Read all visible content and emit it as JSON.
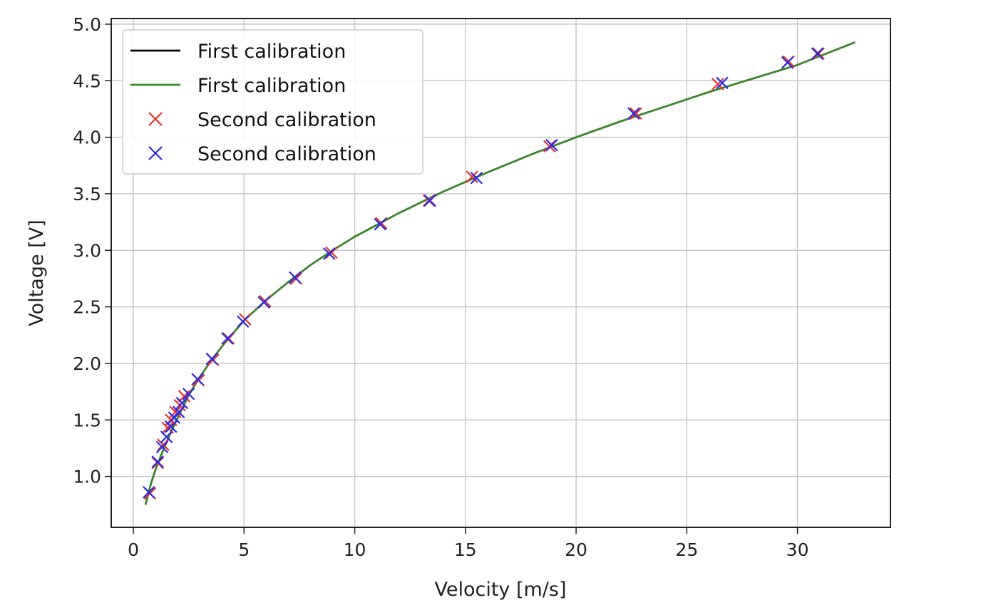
{
  "chart_data": {
    "type": "line",
    "title": "",
    "xlabel": "Velocity [m/s]",
    "ylabel": "Voltage [V]",
    "xlim": [
      -1.0,
      34.2
    ],
    "ylim": [
      0.55,
      5.05
    ],
    "xticks": [
      0,
      5,
      10,
      15,
      20,
      25,
      30
    ],
    "xtick_labels": [
      "0",
      "5",
      "10",
      "15",
      "20",
      "25",
      "30"
    ],
    "yticks": [
      1.0,
      1.5,
      2.0,
      2.5,
      3.0,
      3.5,
      4.0,
      4.5,
      5.0
    ],
    "ytick_labels": [
      "1.0",
      "1.5",
      "2.0",
      "2.5",
      "3.0",
      "3.5",
      "4.0",
      "4.5",
      "5.0"
    ],
    "grid": true,
    "legend_position": "top-left",
    "series": [
      {
        "name": "First calibration",
        "kind": "line",
        "color": "#000000",
        "x": [
          0.55,
          0.8,
          1.0,
          1.3,
          1.6,
          2.0,
          2.5,
          3.0,
          3.5,
          4.0,
          5.0,
          6.0,
          7.0,
          8.0,
          9.0,
          10.0,
          12.0,
          14.0,
          16.0,
          18.0,
          20.0,
          22.0,
          24.0,
          26.0,
          28.0,
          30.0,
          32.6
        ],
        "y": [
          0.75,
          0.94,
          1.06,
          1.21,
          1.35,
          1.52,
          1.72,
          1.88,
          2.02,
          2.15,
          2.38,
          2.56,
          2.72,
          2.87,
          3.0,
          3.12,
          3.33,
          3.52,
          3.69,
          3.85,
          4.0,
          4.14,
          4.27,
          4.4,
          4.52,
          4.64,
          4.84
        ]
      },
      {
        "name": "First calibration",
        "kind": "line",
        "color": "#3a8a2a",
        "x": [
          0.55,
          0.8,
          1.0,
          1.3,
          1.6,
          2.0,
          2.5,
          3.0,
          3.5,
          4.0,
          5.0,
          6.0,
          7.0,
          8.0,
          9.0,
          10.0,
          12.0,
          14.0,
          16.0,
          18.0,
          20.0,
          22.0,
          24.0,
          26.0,
          28.0,
          30.0,
          32.6
        ],
        "y": [
          0.75,
          0.94,
          1.06,
          1.21,
          1.35,
          1.52,
          1.72,
          1.88,
          2.02,
          2.15,
          2.38,
          2.56,
          2.72,
          2.87,
          3.0,
          3.12,
          3.33,
          3.52,
          3.69,
          3.85,
          4.0,
          4.14,
          4.27,
          4.4,
          4.52,
          4.64,
          4.84
        ]
      },
      {
        "name": "Second calibration",
        "kind": "scatter",
        "marker": "x",
        "color": "#e8332a",
        "x": [
          0.75,
          1.1,
          1.35,
          1.55,
          1.7,
          1.9,
          2.1,
          2.3,
          2.95,
          3.6,
          4.3,
          5.05,
          5.95,
          7.35,
          8.95,
          11.2,
          13.35,
          15.3,
          18.8,
          22.7,
          26.4,
          29.6,
          30.95
        ],
        "y": [
          0.85,
          1.12,
          1.28,
          1.43,
          1.5,
          1.57,
          1.63,
          1.71,
          1.85,
          2.03,
          2.22,
          2.39,
          2.55,
          2.75,
          2.98,
          3.24,
          3.44,
          3.65,
          3.92,
          4.21,
          4.47,
          4.67,
          4.74
        ]
      },
      {
        "name": "Second calibration",
        "kind": "scatter",
        "marker": "x",
        "color": "#2a2ae8",
        "x": [
          0.7,
          1.1,
          1.3,
          1.5,
          1.7,
          1.85,
          2.05,
          2.2,
          2.5,
          2.9,
          3.55,
          4.25,
          4.95,
          5.9,
          7.3,
          8.85,
          11.15,
          13.4,
          15.5,
          18.9,
          22.6,
          26.6,
          29.55,
          30.9
        ],
        "y": [
          0.86,
          1.13,
          1.26,
          1.35,
          1.44,
          1.52,
          1.57,
          1.65,
          1.73,
          1.86,
          2.04,
          2.22,
          2.37,
          2.54,
          2.76,
          2.97,
          3.23,
          3.44,
          3.64,
          3.93,
          4.21,
          4.48,
          4.66,
          4.74
        ]
      }
    ]
  }
}
